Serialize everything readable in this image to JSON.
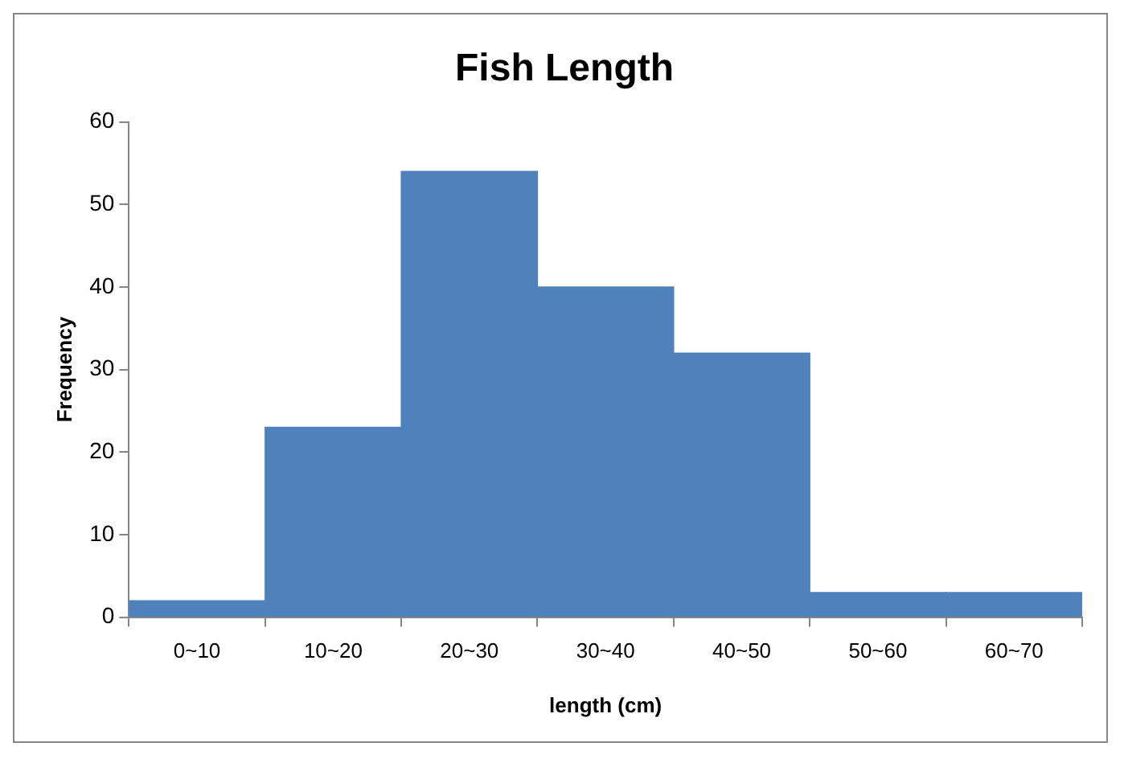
{
  "chart_data": {
    "type": "bar",
    "title": "Fish Length",
    "xlabel": "length (cm)",
    "ylabel": "Frequency",
    "categories": [
      "0~10",
      "10~20",
      "20~30",
      "30~40",
      "40~50",
      "50~60",
      "60~70"
    ],
    "values": [
      2,
      23,
      54,
      40,
      32,
      3,
      3
    ],
    "color": "#4f81bd",
    "ylim": [
      0,
      60
    ],
    "yticks": [
      0,
      10,
      20,
      30,
      40,
      50,
      60
    ],
    "grid": false,
    "legend": false
  }
}
